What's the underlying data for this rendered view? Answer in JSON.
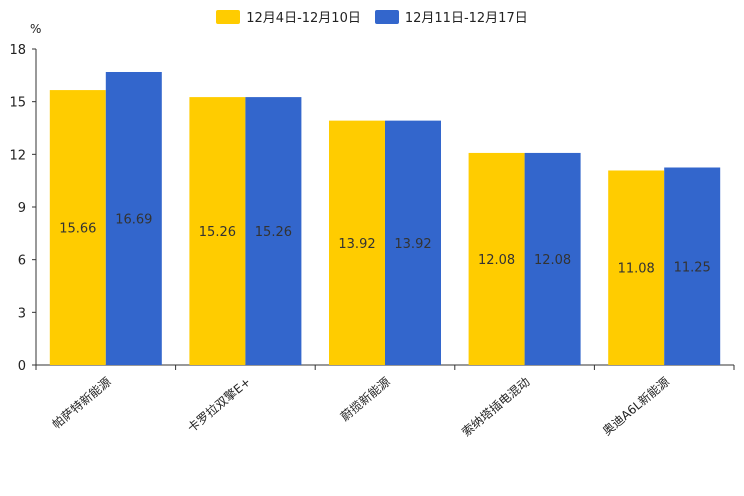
{
  "chart_data": {
    "type": "bar",
    "title": "",
    "unit_label": "%",
    "categories": [
      "帕萨特新能源",
      "卡罗拉双擎E+",
      "蔚揽新能源",
      "索纳塔插电混动",
      "奥迪A6L新能源"
    ],
    "series": [
      {
        "name": "12月4日-12月10日",
        "color": "#FFCC00",
        "values": [
          15.66,
          15.26,
          13.92,
          12.08,
          11.08
        ],
        "labels": [
          "15.66",
          "15.26",
          "13.92",
          "12.08",
          "11.08"
        ]
      },
      {
        "name": "12月11日-12月17日",
        "color": "#3366CC",
        "values": [
          16.69,
          15.26,
          13.92,
          12.08,
          11.25
        ],
        "labels": [
          "16.69",
          "15.26",
          "13.92",
          "12.08",
          "11.25"
        ]
      }
    ],
    "yticks": [
      "0",
      "3",
      "6",
      "9",
      "12",
      "15",
      "18"
    ],
    "ylim": [
      0,
      18
    ],
    "legend_position": "top-center",
    "grid": false
  }
}
